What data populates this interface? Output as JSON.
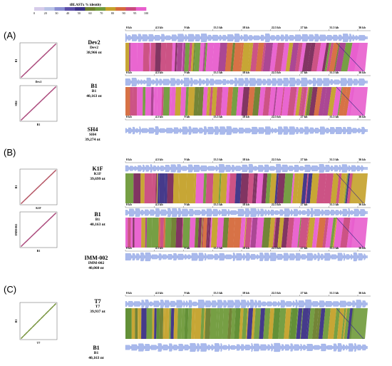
{
  "legend": {
    "title": "tBLASTx % identity",
    "ticks": [
      "0",
      "20",
      "30",
      "40",
      "50",
      "60",
      "70",
      "80",
      "90",
      "95",
      "100"
    ],
    "colors": [
      "#d6ccea",
      "#b8c2e6",
      "#8a8ed2",
      "#5b4ea8",
      "#3b2f85",
      "#6b7d2c",
      "#6f9a3a",
      "#c4a12a",
      "#d56a3c",
      "#c94a7e",
      "#e85ecd"
    ]
  },
  "panels": [
    {
      "letter": "(A)",
      "ticks": [
        "0 kb",
        "4.5 kb",
        "9 kb",
        "13.5 kb",
        "18 kb",
        "22.5 kb",
        "27 kb",
        "31.5 kb",
        "36 kb"
      ],
      "genomes": [
        {
          "name": "Dev2",
          "sub": "Dev2",
          "size": "38,966 nt"
        },
        {
          "name": "B1",
          "sub": "B1",
          "size": "40,163 nt"
        },
        {
          "name": "SH4",
          "sub": "SH4",
          "size": "39,274 nt"
        }
      ],
      "dots": [
        {
          "x": "Dev2",
          "y": "B1"
        },
        {
          "x": "B1",
          "y": "SH4"
        }
      ]
    },
    {
      "letter": "(B)",
      "ticks": [
        "0 kb",
        "4.5 kb",
        "9 kb",
        "13.5 kb",
        "18 kb",
        "22.5 kb",
        "27 kb",
        "31.5 kb",
        "36 kb"
      ],
      "genomes": [
        {
          "name": "K1F",
          "sub": "K1F",
          "size": "39,699 nt"
        },
        {
          "name": "B1",
          "sub": "B1",
          "size": "40,163 nt"
        },
        {
          "name": "IMM-002",
          "sub": "IMM-002",
          "size": "40,060 nt"
        }
      ],
      "dots": [
        {
          "x": "K1F",
          "y": "B1"
        },
        {
          "x": "B1",
          "y": "IMM-002"
        }
      ]
    },
    {
      "letter": "(C)",
      "ticks": [
        "0 kb",
        "4.5 kb",
        "9 kb",
        "13.5 kb",
        "18 kb",
        "22.5 kb",
        "27 kb",
        "31.5 kb",
        "36 kb"
      ],
      "genomes": [
        {
          "name": "T7",
          "sub": "T7",
          "size": "39,937 nt"
        },
        {
          "name": "B1",
          "sub": "B1",
          "size": "40,163 nt"
        }
      ],
      "dots": [
        {
          "x": "T7",
          "y": "B1"
        }
      ]
    }
  ]
}
